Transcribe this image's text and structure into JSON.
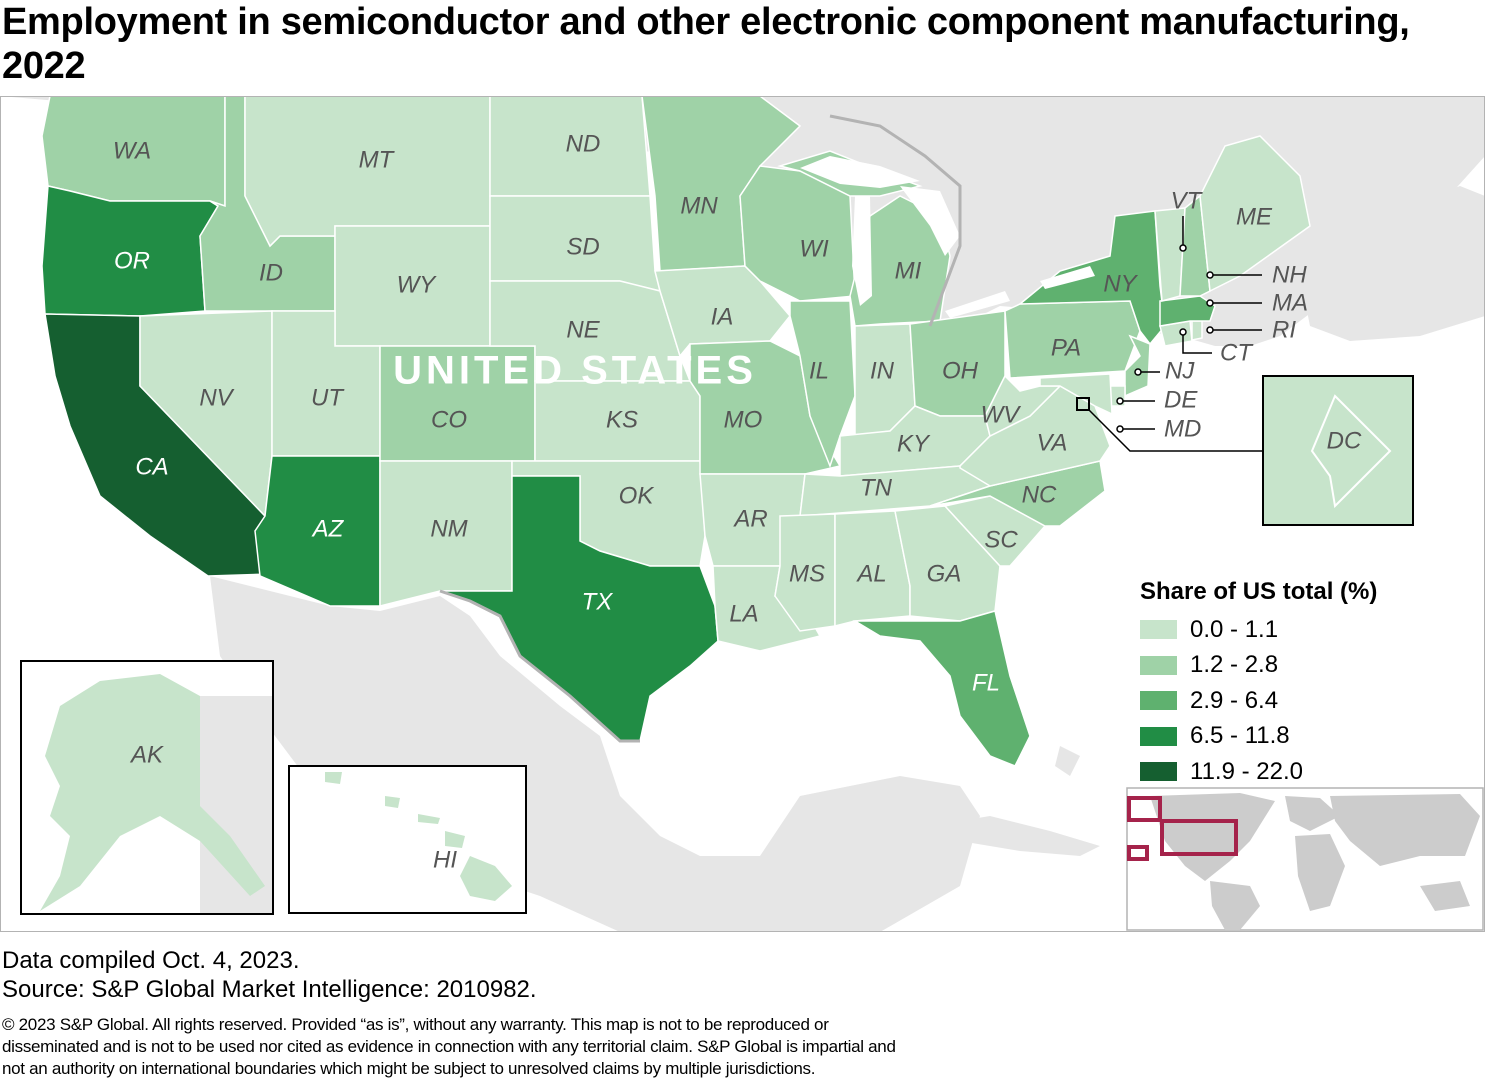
{
  "title": "Employment in semiconductor and other electronic component manufacturing, 2022",
  "country_label": "UNITED STATES",
  "legend": {
    "title": "Share of US total (%)",
    "classes": [
      {
        "label": "0.0 - 1.1",
        "color": "#c7e4cb"
      },
      {
        "label": "1.2 - 2.8",
        "color": "#9fd2a7"
      },
      {
        "label": "2.9 - 6.4",
        "color": "#5fb16f"
      },
      {
        "label": "6.5 - 11.8",
        "color": "#218d45"
      },
      {
        "label": "11.9 - 22.0",
        "color": "#155f30"
      }
    ]
  },
  "states": {
    "WA": "1.2 - 2.8",
    "OR": "6.5 - 11.8",
    "CA": "11.9 - 22.0",
    "ID": "1.2 - 2.8",
    "NV": "0.0 - 1.1",
    "MT": "0.0 - 1.1",
    "WY": "0.0 - 1.1",
    "UT": "0.0 - 1.1",
    "AZ": "6.5 - 11.8",
    "CO": "1.2 - 2.8",
    "NM": "0.0 - 1.1",
    "ND": "0.0 - 1.1",
    "SD": "0.0 - 1.1",
    "NE": "0.0 - 1.1",
    "KS": "0.0 - 1.1",
    "OK": "0.0 - 1.1",
    "TX": "6.5 - 11.8",
    "MN": "1.2 - 2.8",
    "IA": "0.0 - 1.1",
    "MO": "1.2 - 2.8",
    "AR": "0.0 - 1.1",
    "LA": "0.0 - 1.1",
    "WI": "1.2 - 2.8",
    "IL": "1.2 - 2.8",
    "MI": "1.2 - 2.8",
    "IN": "0.0 - 1.1",
    "OH": "1.2 - 2.8",
    "KY": "0.0 - 1.1",
    "TN": "0.0 - 1.1",
    "MS": "0.0 - 1.1",
    "AL": "0.0 - 1.1",
    "GA": "0.0 - 1.1",
    "FL": "2.9 - 6.4",
    "SC": "0.0 - 1.1",
    "NC": "1.2 - 2.8",
    "VA": "0.0 - 1.1",
    "WV": "0.0 - 1.1",
    "PA": "1.2 - 2.8",
    "NY": "2.9 - 6.4",
    "NJ": "1.2 - 2.8",
    "DE": "0.0 - 1.1",
    "MD": "0.0 - 1.1",
    "DC": "0.0 - 1.1",
    "CT": "0.0 - 1.1",
    "RI": "0.0 - 1.1",
    "MA": "2.9 - 6.4",
    "VT": "0.0 - 1.1",
    "NH": "1.2 - 2.8",
    "ME": "0.0 - 1.1",
    "AK": "0.0 - 1.1",
    "HI": "0.0 - 1.1"
  },
  "colors": {
    "water": "#ffffff",
    "land": "#e6e6e6",
    "border": "#b3b3b3",
    "frame": "#000000",
    "locator_box": "#a5234b",
    "world_land": "#cccccc"
  },
  "footer": {
    "compiled": "Data compiled Oct. 4, 2023.",
    "source": "Source: S&P Global Market Intelligence: 2010982.",
    "copyright": "© 2023 S&P Global. All rights reserved. Provided “as is”, without any warranty. This map is not to be reproduced or disseminated and is not to be used nor cited as evidence in connection with any territorial claim. S&P Global is impartial and not an authority on international boundaries which might be subject to unresolved claims by multiple jurisdictions."
  }
}
